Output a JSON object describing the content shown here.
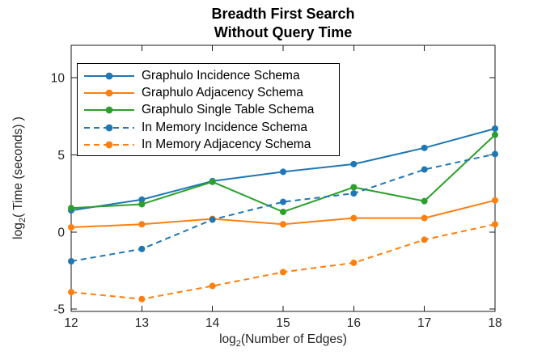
{
  "title": {
    "line1": "Breadth First Search",
    "line2": "Without Query Time"
  },
  "chart_data": {
    "type": "line",
    "x": [
      12,
      13,
      14,
      15,
      16,
      17,
      18
    ],
    "xlim": [
      12,
      18
    ],
    "ylim": [
      -5.15,
      12.1
    ],
    "xticks": [
      12,
      13,
      14,
      15,
      16,
      17,
      18
    ],
    "yticks": [
      -5,
      0,
      5,
      10
    ],
    "grid": false,
    "legend_position": "top-left",
    "xlabel": {
      "prefix": "log",
      "sub": "2",
      "suffix": "(Number of Edges)"
    },
    "ylabel": {
      "prefix": "log",
      "sub": "2",
      "suffix": "( Time (seconds) )"
    },
    "series": [
      {
        "name": "Graphulo Incidence Schema",
        "color": "#1f77b4",
        "style": "solid",
        "marker": "circle",
        "values": [
          1.4,
          2.1,
          3.3,
          3.9,
          4.4,
          5.45,
          6.7
        ]
      },
      {
        "name": "Graphulo Adjacency Schema",
        "color": "#ff7f0e",
        "style": "solid",
        "marker": "circle",
        "values": [
          0.3,
          0.5,
          0.85,
          0.5,
          0.9,
          0.9,
          2.05
        ]
      },
      {
        "name": "Graphulo Single Table Schema",
        "color": "#2ca02c",
        "style": "solid",
        "marker": "circle",
        "values": [
          1.55,
          1.8,
          3.25,
          1.3,
          2.9,
          2.0,
          6.3
        ]
      },
      {
        "name": "In Memory Incidence Schema",
        "color": "#1f77b4",
        "style": "dashed",
        "marker": "circle",
        "values": [
          -1.9,
          -1.1,
          0.8,
          1.95,
          2.5,
          4.05,
          5.05
        ]
      },
      {
        "name": "In Memory Adjacency Schema",
        "color": "#ff7f0e",
        "style": "dashed",
        "marker": "circle",
        "values": [
          -3.9,
          -4.35,
          -3.5,
          -2.6,
          -2.0,
          -0.5,
          0.5
        ]
      }
    ],
    "colors": {
      "axis": "#1a1a1a",
      "tick_text": "#262626",
      "title_text": "#000000"
    }
  }
}
